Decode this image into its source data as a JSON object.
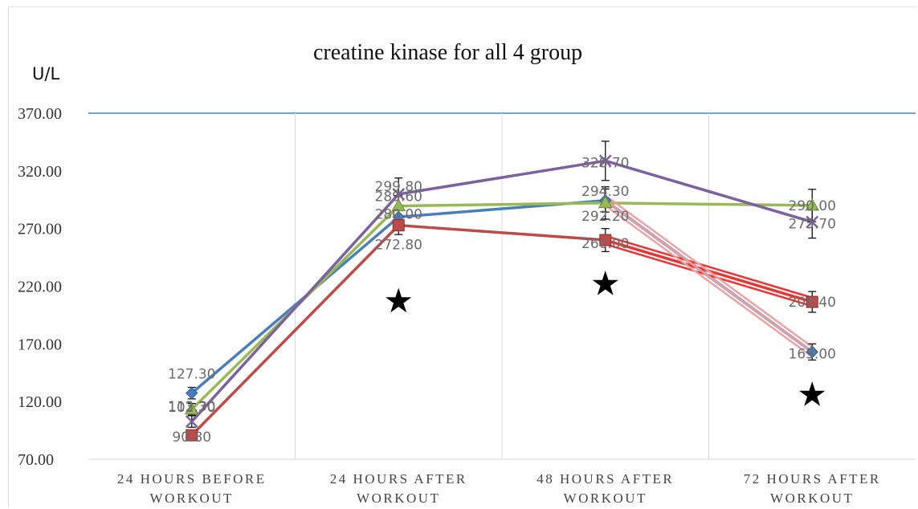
{
  "chart_data": {
    "type": "line",
    "title": "creatine kinase for all 4 group",
    "ylabel": "U/L",
    "xlabel": "",
    "ylim": [
      70,
      370
    ],
    "yticks": [
      "70.00",
      "120.00",
      "170.00",
      "220.00",
      "270.00",
      "320.00",
      "370.00"
    ],
    "categories": [
      [
        "24 HOURS BEFORE",
        "WORKOUT"
      ],
      [
        "24 HOURS AFTER",
        "WORKOUT"
      ],
      [
        "48 HOURS AFTER",
        "WORKOUT"
      ],
      [
        "72 HOURS AFTER",
        "WORKOUT"
      ]
    ],
    "series": [
      {
        "color": "#4a7ebb",
        "marker": "diamond",
        "values": [
          127.3,
          280.0,
          294.3,
          163.0
        ],
        "errors": [
          5,
          8,
          10,
          7
        ]
      },
      {
        "color": "#be4b48",
        "marker": "square",
        "values": [
          90.8,
          272.8,
          260.0,
          206.4
        ],
        "errors": [
          4,
          8,
          10,
          9
        ]
      },
      {
        "color": "#98b954",
        "marker": "triangle",
        "values": [
          113.3,
          289.6,
          292.2,
          290.0
        ],
        "errors": [
          5,
          9,
          14,
          14
        ]
      },
      {
        "color": "#7d60a0",
        "marker": "x",
        "values": [
          102.7,
          299.8,
          328.7,
          275.7
        ],
        "errors": [
          5,
          14,
          17,
          14
        ]
      }
    ],
    "data_labels": [
      {
        "text": "127.30",
        "series": 0,
        "point": 0
      },
      {
        "text": "90.80",
        "series": 1,
        "point": 0
      },
      {
        "text": "113.30",
        "series": 2,
        "point": 0
      },
      {
        "text": "102.70",
        "series": 3,
        "point": 0
      },
      {
        "text": "280.00",
        "series": 0,
        "point": 1
      },
      {
        "text": "272.80",
        "series": 1,
        "point": 1
      },
      {
        "text": "289.60",
        "series": 2,
        "point": 1
      },
      {
        "text": "299.80",
        "series": 3,
        "point": 1
      },
      {
        "text": "294.30",
        "series": 0,
        "point": 2
      },
      {
        "text": "260.00",
        "series": 1,
        "point": 2
      },
      {
        "text": "292.20",
        "series": 2,
        "point": 2
      },
      {
        "text": "328.70",
        "series": 3,
        "point": 2
      },
      {
        "text": "163.00",
        "series": 0,
        "point": 3
      },
      {
        "text": "206.40",
        "series": 1,
        "point": 3
      },
      {
        "text": "290.00",
        "series": 2,
        "point": 3
      },
      {
        "text": "275.70",
        "series": 3,
        "point": 3
      }
    ],
    "highlight_segments": [
      {
        "color": "#ee3333",
        "from": [
          2,
          260.0
        ],
        "to": [
          3,
          206.4
        ]
      },
      {
        "color": "#f0a0a0",
        "from": [
          2,
          294.3
        ],
        "to": [
          3,
          163.0
        ]
      }
    ],
    "annotations": [
      {
        "symbol": "★",
        "x": 1,
        "y": 207
      },
      {
        "symbol": "★",
        "x": 2,
        "y": 222
      },
      {
        "symbol": "★",
        "x": 3,
        "y": 126
      }
    ],
    "grid": "vertical category separators",
    "legend": "none"
  }
}
